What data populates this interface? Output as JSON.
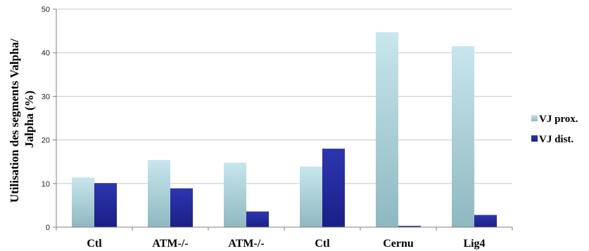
{
  "chart_data": {
    "type": "bar",
    "categories": [
      "Ctl",
      "ATM-/-",
      "ATM-/-",
      "Ctl",
      "Cernu",
      "Lig4"
    ],
    "series": [
      {
        "name": "VJ prox.",
        "values": [
          11.4,
          15.4,
          14.8,
          13.9,
          44.7,
          41.5
        ]
      },
      {
        "name": "VJ dist.",
        "values": [
          10.1,
          8.9,
          3.6,
          18.0,
          0.3,
          2.8
        ]
      }
    ],
    "ylabel": "Utilisation des segments Valpha/ Jalpha (%)",
    "ylabel_lines": [
      "Utilisation des segments Valpha/",
      "Jalpha (%)"
    ],
    "ylim": [
      0,
      50
    ],
    "yticks": [
      0,
      10,
      20,
      30,
      40,
      50
    ],
    "grid": true,
    "legend": "right",
    "colors": {
      "prox_top": "#c8e6ee",
      "prox_bottom": "#8fb8c0",
      "dist_top": "#2d36b0",
      "dist_bottom": "#1a1f86",
      "grid": "#c8c8c8",
      "axis": "#808080"
    }
  }
}
